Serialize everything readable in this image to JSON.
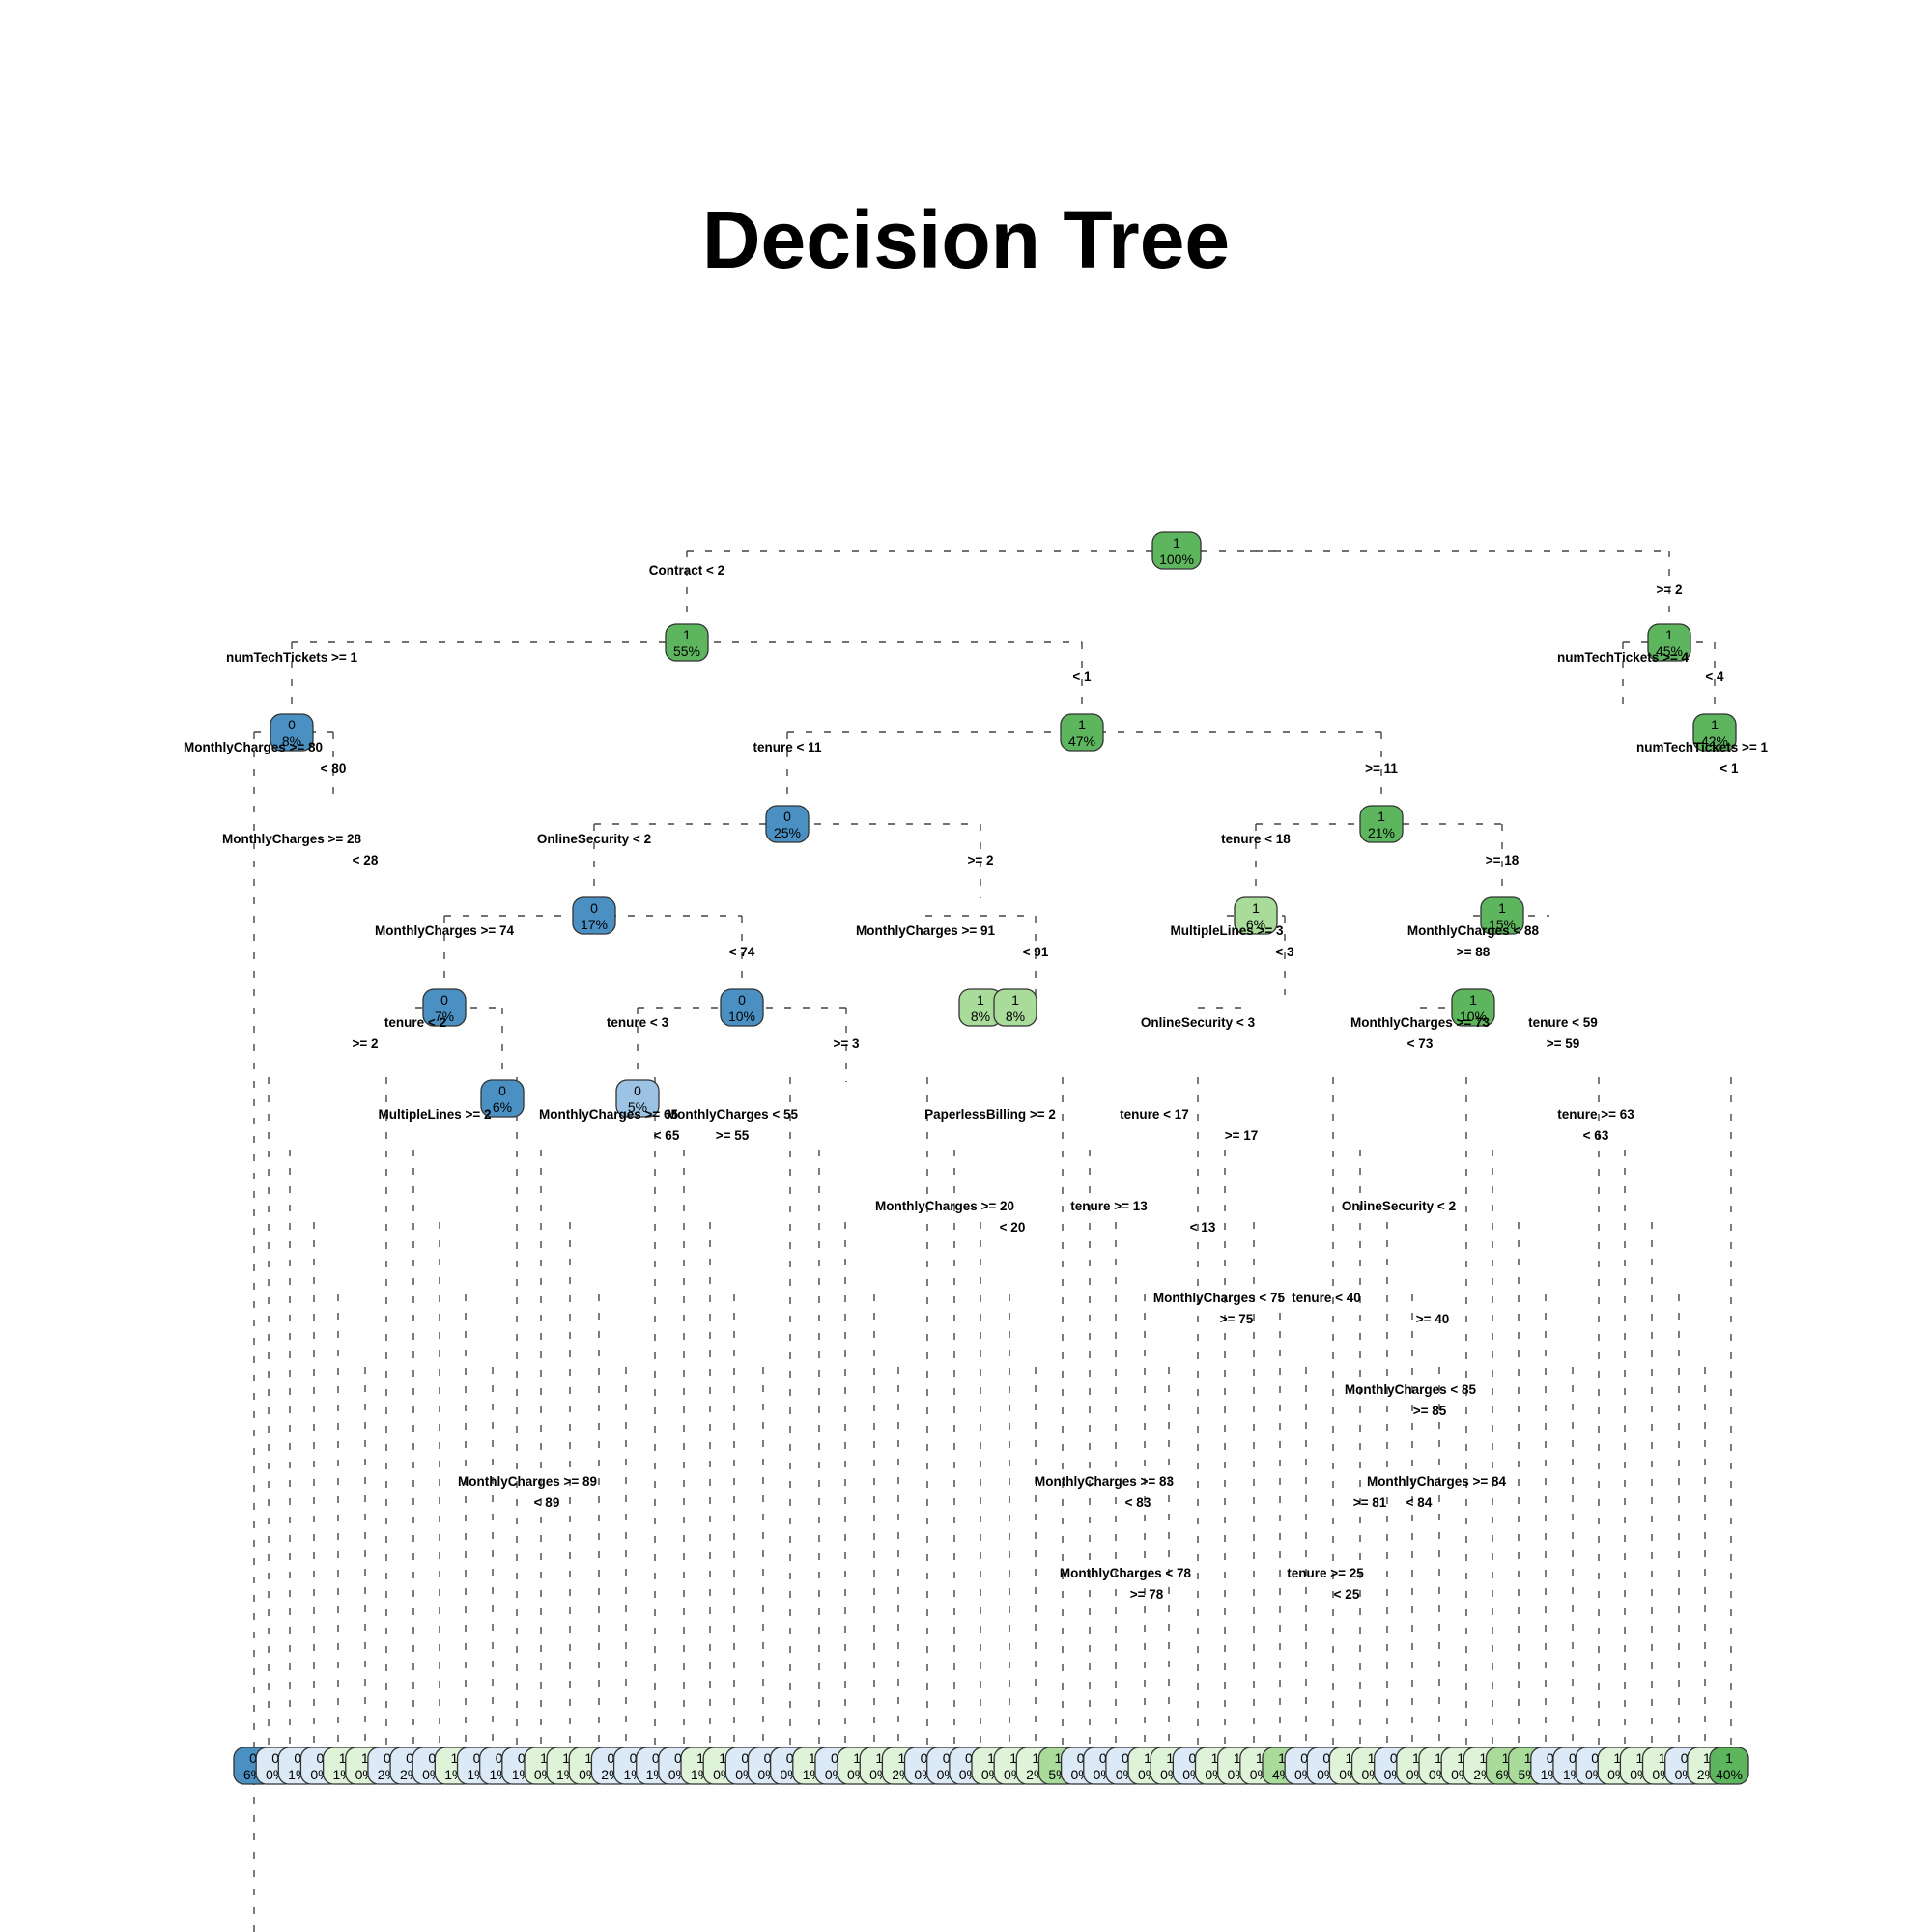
{
  "title": "Decision Tree",
  "colors": {
    "class0_dark": "#4a90c2",
    "class0_mid": "#9cc3e3",
    "class0_light": "#dce9f6",
    "class1_light": "#dff3d8",
    "class1_mid": "#a9dc9a",
    "class1_dark": "#5db55d",
    "edge": "#444444"
  },
  "root_node": {
    "class": "1",
    "pct": "100%"
  },
  "root_split": {
    "left": "Contract < 2",
    "right": ">= 2"
  },
  "visible_nodes": [
    {
      "class": "1",
      "pct": "55%"
    },
    {
      "class": "1",
      "pct": "45%"
    },
    {
      "class": "1",
      "pct": "47%"
    },
    {
      "class": "0",
      "pct": "8%"
    },
    {
      "class": "1",
      "pct": "42%"
    },
    {
      "class": "0",
      "pct": "25%"
    },
    {
      "class": "1",
      "pct": "21%"
    },
    {
      "class": "0",
      "pct": "17%"
    },
    {
      "class": "1",
      "pct": "15%"
    },
    {
      "class": "0",
      "pct": "10%"
    },
    {
      "class": "1",
      "pct": "10%"
    },
    {
      "class": "1",
      "pct": "8%"
    },
    {
      "class": "1",
      "pct": "8%"
    },
    {
      "class": "0",
      "pct": "7%"
    },
    {
      "class": "1",
      "pct": "6%"
    },
    {
      "class": "0",
      "pct": "6%"
    },
    {
      "class": "0",
      "pct": "5%"
    }
  ],
  "split_labels": [
    "numTechTickets >= 1",
    "< 1",
    "numTechTickets >= 4",
    "< 4",
    "MonthlyCharges >= 80",
    "< 80",
    "tenure < 11",
    ">= 11",
    "numTechTickets >= 1",
    "< 1",
    "MonthlyCharges >= 28",
    "< 28",
    "OnlineSecurity < 2",
    ">= 2",
    "tenure < 18",
    ">= 18",
    "MonthlyCharges >= 74",
    "< 74",
    "MonthlyCharges >= 91",
    "< 91",
    "MultipleLines >= 3",
    "< 3",
    "MonthlyCharges < 88",
    ">= 88",
    "tenure < 3",
    ">= 3",
    "tenure < 2",
    ">= 2",
    "OnlineSecurity < 3",
    "MonthlyCharges >= 73",
    "< 73",
    "tenure < 59",
    ">= 59",
    "MonthlyCharges >= 65",
    "< 65",
    "MonthlyCharges < 55",
    ">= 55",
    "PaperlessBilling >= 2",
    "tenure < 17",
    ">= 17",
    "MultipleLines >= 2",
    "tenure >= 63",
    "< 63",
    "MonthlyCharges >= 20",
    "< 20",
    "tenure >= 13",
    "< 13",
    "OnlineSecurity < 2",
    "MonthlyCharges < 75",
    ">= 75",
    "tenure < 40",
    ">= 40",
    "MonthlyCharges < 85",
    ">= 85",
    "MonthlyCharges >= 89",
    "< 89",
    "MonthlyCharges >= 83",
    "< 83",
    "MonthlyCharges < 78",
    ">= 78",
    "tenure >= 25",
    "< 25",
    "MonthlyCharges >= 84",
    "< 84",
    ">= 81"
  ],
  "leaves": [
    {
      "class": "0",
      "pct": "6%"
    },
    {
      "class": "0",
      "pct": "0%"
    },
    {
      "class": "0",
      "pct": "1%"
    },
    {
      "class": "0",
      "pct": "0%"
    },
    {
      "class": "1",
      "pct": "1%"
    },
    {
      "class": "1",
      "pct": "0%"
    },
    {
      "class": "0",
      "pct": "2%"
    },
    {
      "class": "0",
      "pct": "2%"
    },
    {
      "class": "0",
      "pct": "0%"
    },
    {
      "class": "1",
      "pct": "1%"
    },
    {
      "class": "0",
      "pct": "1%"
    },
    {
      "class": "0",
      "pct": "1%"
    },
    {
      "class": "0",
      "pct": "1%"
    },
    {
      "class": "1",
      "pct": "0%"
    },
    {
      "class": "1",
      "pct": "1%"
    },
    {
      "class": "1",
      "pct": "0%"
    },
    {
      "class": "0",
      "pct": "2%"
    },
    {
      "class": "0",
      "pct": "1%"
    },
    {
      "class": "0",
      "pct": "1%"
    },
    {
      "class": "0",
      "pct": "0%"
    },
    {
      "class": "1",
      "pct": "1%"
    },
    {
      "class": "1",
      "pct": "0%"
    },
    {
      "class": "0",
      "pct": "0%"
    },
    {
      "class": "0",
      "pct": "0%"
    },
    {
      "class": "0",
      "pct": "0%"
    },
    {
      "class": "1",
      "pct": "1%"
    },
    {
      "class": "0",
      "pct": "0%"
    },
    {
      "class": "1",
      "pct": "0%"
    },
    {
      "class": "1",
      "pct": "0%"
    },
    {
      "class": "1",
      "pct": "2%"
    },
    {
      "class": "0",
      "pct": "0%"
    },
    {
      "class": "0",
      "pct": "0%"
    },
    {
      "class": "0",
      "pct": "0%"
    },
    {
      "class": "1",
      "pct": "0%"
    },
    {
      "class": "1",
      "pct": "0%"
    },
    {
      "class": "1",
      "pct": "2%"
    },
    {
      "class": "1",
      "pct": "5%"
    },
    {
      "class": "0",
      "pct": "0%"
    },
    {
      "class": "0",
      "pct": "0%"
    },
    {
      "class": "0",
      "pct": "0%"
    },
    {
      "class": "1",
      "pct": "0%"
    },
    {
      "class": "1",
      "pct": "0%"
    },
    {
      "class": "0",
      "pct": "0%"
    },
    {
      "class": "1",
      "pct": "0%"
    },
    {
      "class": "1",
      "pct": "0%"
    },
    {
      "class": "1",
      "pct": "0%"
    },
    {
      "class": "1",
      "pct": "4%"
    },
    {
      "class": "0",
      "pct": "0%"
    },
    {
      "class": "0",
      "pct": "0%"
    },
    {
      "class": "1",
      "pct": "0%"
    },
    {
      "class": "1",
      "pct": "0%"
    },
    {
      "class": "0",
      "pct": "0%"
    },
    {
      "class": "1",
      "pct": "0%"
    },
    {
      "class": "1",
      "pct": "0%"
    },
    {
      "class": "1",
      "pct": "0%"
    },
    {
      "class": "1",
      "pct": "2%"
    },
    {
      "class": "1",
      "pct": "6%"
    },
    {
      "class": "1",
      "pct": "5%"
    },
    {
      "class": "0",
      "pct": "1%"
    },
    {
      "class": "0",
      "pct": "1%"
    },
    {
      "class": "0",
      "pct": "0%"
    },
    {
      "class": "1",
      "pct": "0%"
    },
    {
      "class": "1",
      "pct": "0%"
    },
    {
      "class": "1",
      "pct": "0%"
    },
    {
      "class": "0",
      "pct": "0%"
    },
    {
      "class": "1",
      "pct": "2%"
    },
    {
      "class": "1",
      "pct": "40%"
    }
  ]
}
